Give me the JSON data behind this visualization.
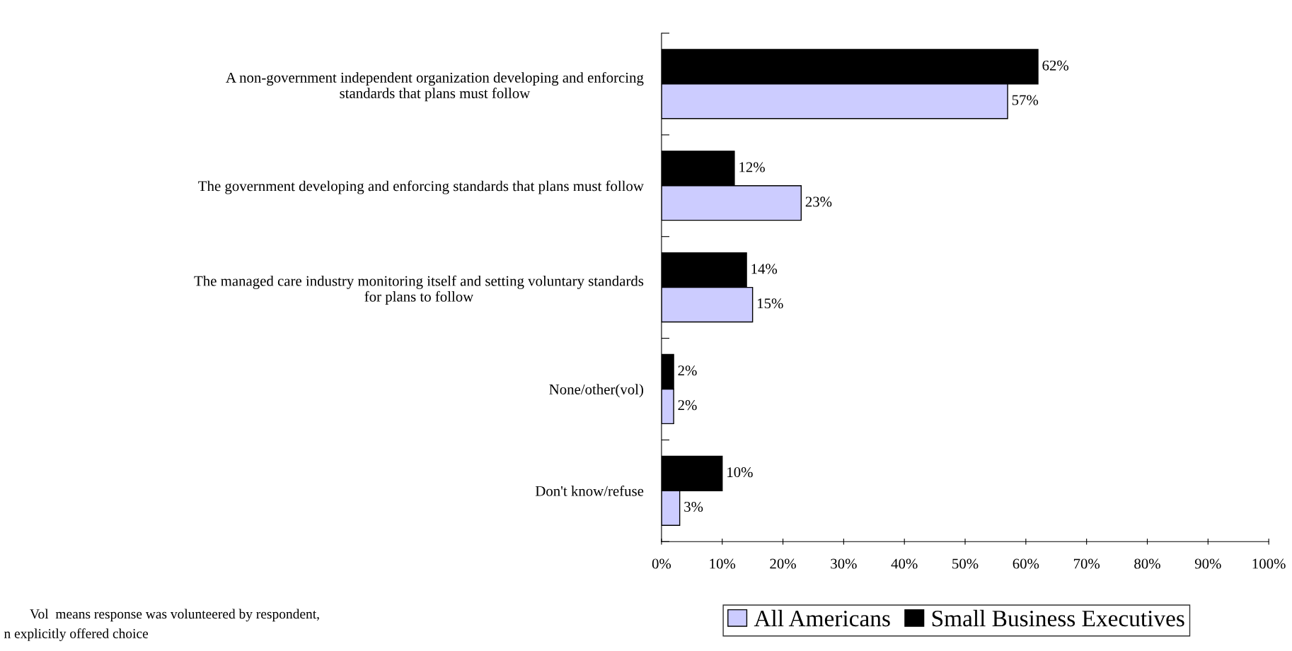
{
  "chart_data": {
    "type": "bar",
    "orientation": "horizontal",
    "categories": [
      "A non-government independent organization developing and enforcing\nstandards that plans must follow",
      "The government developing and enforcing standards that plans must follow",
      "The managed care industry monitoring itself and setting voluntary standards\nfor plans to follow",
      "None/other(vol)",
      "Don't know/refuse"
    ],
    "series": [
      {
        "name": "Small Business Executives",
        "color": "#000000",
        "values": [
          62,
          12,
          14,
          2,
          10
        ],
        "value_labels": [
          "62%",
          "12%",
          "14%",
          "2%",
          "10%"
        ]
      },
      {
        "name": "All Americans",
        "color": "#ccccff",
        "values": [
          57,
          23,
          15,
          2,
          3
        ],
        "value_labels": [
          "57%",
          "23%",
          "15%",
          "2%",
          "3%"
        ]
      }
    ],
    "xlim": [
      0,
      100
    ],
    "xticks": [
      {
        "value": 0,
        "label": "0%"
      },
      {
        "value": 10,
        "label": "10%"
      },
      {
        "value": 20,
        "label": "20%"
      },
      {
        "value": 30,
        "label": "30%"
      },
      {
        "value": 40,
        "label": "40%"
      },
      {
        "value": 50,
        "label": "50%"
      },
      {
        "value": 60,
        "label": "60%"
      },
      {
        "value": 70,
        "label": "70%"
      },
      {
        "value": 80,
        "label": "80%"
      },
      {
        "value": 90,
        "label": "90%"
      },
      {
        "value": 100,
        "label": "100%"
      }
    ],
    "legend": "bottom right",
    "grid": false,
    "annotations": [
      "Vol  means response was volunteered by respondent,",
      "n explicitly offered choice"
    ]
  }
}
